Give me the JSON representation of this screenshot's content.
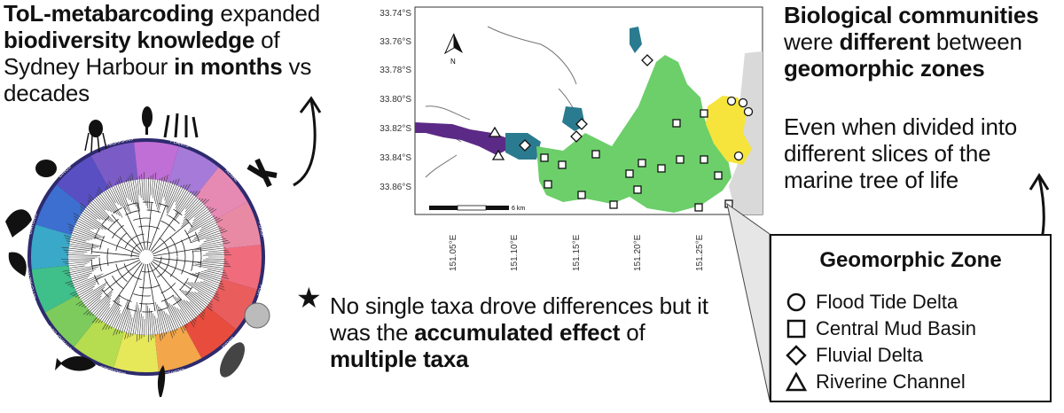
{
  "top_left": {
    "part1": "ToL-metabarcoding",
    "part2": " expanded ",
    "part3": "biodiversity knowledge",
    "part4": " of Sydney Harbour ",
    "part5": "in months",
    "part6": " vs decades"
  },
  "top_right": {
    "part1": "Biological communities",
    "part2": " were ",
    "part3": "different",
    "part4": " between ",
    "part5": "geomorphic zones",
    "sub": "Even when divided into different slices of the marine tree of life"
  },
  "middle": {
    "star": "★",
    "part1": "No single taxa drove differences but it was the ",
    "part2": "accumulated effect",
    "part3": " of ",
    "part4": "multiple taxa"
  },
  "legend": {
    "title": "Geomorphic Zone",
    "items": [
      {
        "label": "Flood Tide Delta",
        "shape": "circle"
      },
      {
        "label": "Central Mud Basin",
        "shape": "square"
      },
      {
        "label": "Fluvial Delta",
        "shape": "diamond"
      },
      {
        "label": "Riverine Channel",
        "shape": "triangle"
      }
    ]
  },
  "map": {
    "y_ticks": [
      "33.74°S",
      "33.76°S",
      "33.78°S",
      "33.80°S",
      "33.82°S",
      "33.84°S",
      "33.86°S"
    ],
    "x_ticks": [
      "151.05°E",
      "151.10°E",
      "151.15°E",
      "151.20°E",
      "151.25°E"
    ],
    "scale_label": "6 km",
    "north_label": "N",
    "zone_colors": {
      "riverine_channel": "#5b2a86",
      "fluvial_delta": "#2a7b8f",
      "central_mud_basin": "#6ccf6a",
      "flood_tide_delta": "#f6e43c"
    }
  },
  "tree": {
    "segment_labels": [
      "CNIDARIANS",
      "PLANTS",
      "ALGAE",
      "FUNGI",
      "FISH",
      "BIRDS",
      "CILIATES",
      "MOLLUSCS",
      "ARTHROPODS",
      "POLYCHAETES",
      "DIATOMS",
      "DINOS"
    ]
  }
}
